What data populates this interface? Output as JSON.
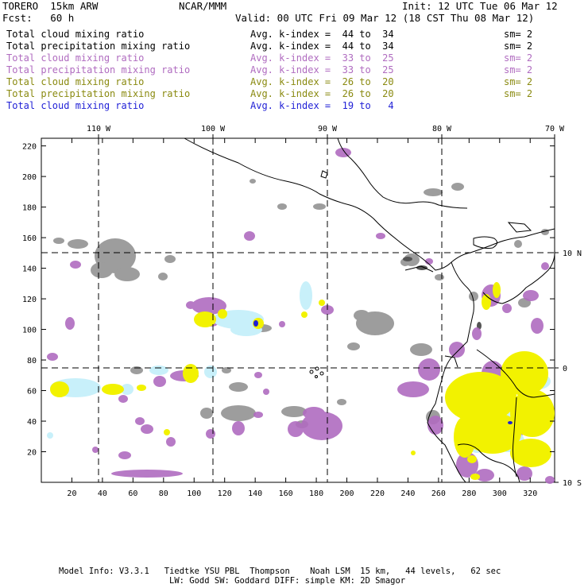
{
  "header": {
    "model": "TORERO  15km ARW",
    "org": "NCAR/MMM",
    "init": "Init: 12 UTC Tue 06 Mar 12",
    "fcst": "Fcst:   60 h",
    "valid": "Valid: 00 UTC Fri 09 Mar 12 (18 CST Thu 08 Mar 12)"
  },
  "legend_rows": [
    {
      "field": "Total cloud mixing ratio",
      "kindex": "Avg. k-index =  44 to  34",
      "sm": "sm= 2",
      "color": "#000000"
    },
    {
      "field": "Total precipitation mixing ratio",
      "kindex": "Avg. k-index =  44 to  34",
      "sm": "sm= 2",
      "color": "#000000"
    },
    {
      "field": "Total cloud mixing ratio",
      "kindex": "Avg. k-index =  33 to  25",
      "sm": "sm= 2",
      "color": "#b06cc0"
    },
    {
      "field": "Total precipitation mixing ratio",
      "kindex": "Avg. k-index =  33 to  25",
      "sm": "sm= 2",
      "color": "#b06cc0"
    },
    {
      "field": "Total cloud mixing ratio",
      "kindex": "Avg. k-index =  26 to  20",
      "sm": "sm= 2",
      "color": "#8a8a10"
    },
    {
      "field": "Total precipitation mixing ratio",
      "kindex": "Avg. k-index =  26 to  20",
      "sm": "sm= 2",
      "color": "#8a8a10"
    },
    {
      "field": "Total cloud mixing ratio",
      "kindex": "Avg. k-index =  19 to   4",
      "sm": "",
      "color": "#1f1fd6"
    }
  ],
  "axes": {
    "lon_labels": [
      "110 W",
      "100 W",
      "90 W",
      "80 W",
      "70 W"
    ],
    "lat_labels": [
      "10 N",
      "0",
      "10 S"
    ],
    "x_ticks": [
      "20",
      "40",
      "60",
      "80",
      "100",
      "120",
      "140",
      "160",
      "180",
      "200",
      "220",
      "240",
      "260",
      "280",
      "300",
      "320"
    ],
    "y_ticks": [
      "20",
      "40",
      "60",
      "80",
      "100",
      "120",
      "140",
      "160",
      "180",
      "200",
      "220"
    ]
  },
  "colors": {
    "gray": "#8c8c8c",
    "purple": "#b06cc0",
    "yellow": "#f2f200",
    "cyan": "#c8f0fa",
    "blue": "#1f1fd6",
    "coast": "#000000"
  },
  "footer": {
    "line1": "Model Info: V3.3.1   Tiedtke YSU PBL  Thompson    Noah LSM  15 km,   44 levels,   62 sec",
    "line2": "LW: Godd SW: Goddard DIFF: simple KM: 2D Smagor"
  }
}
